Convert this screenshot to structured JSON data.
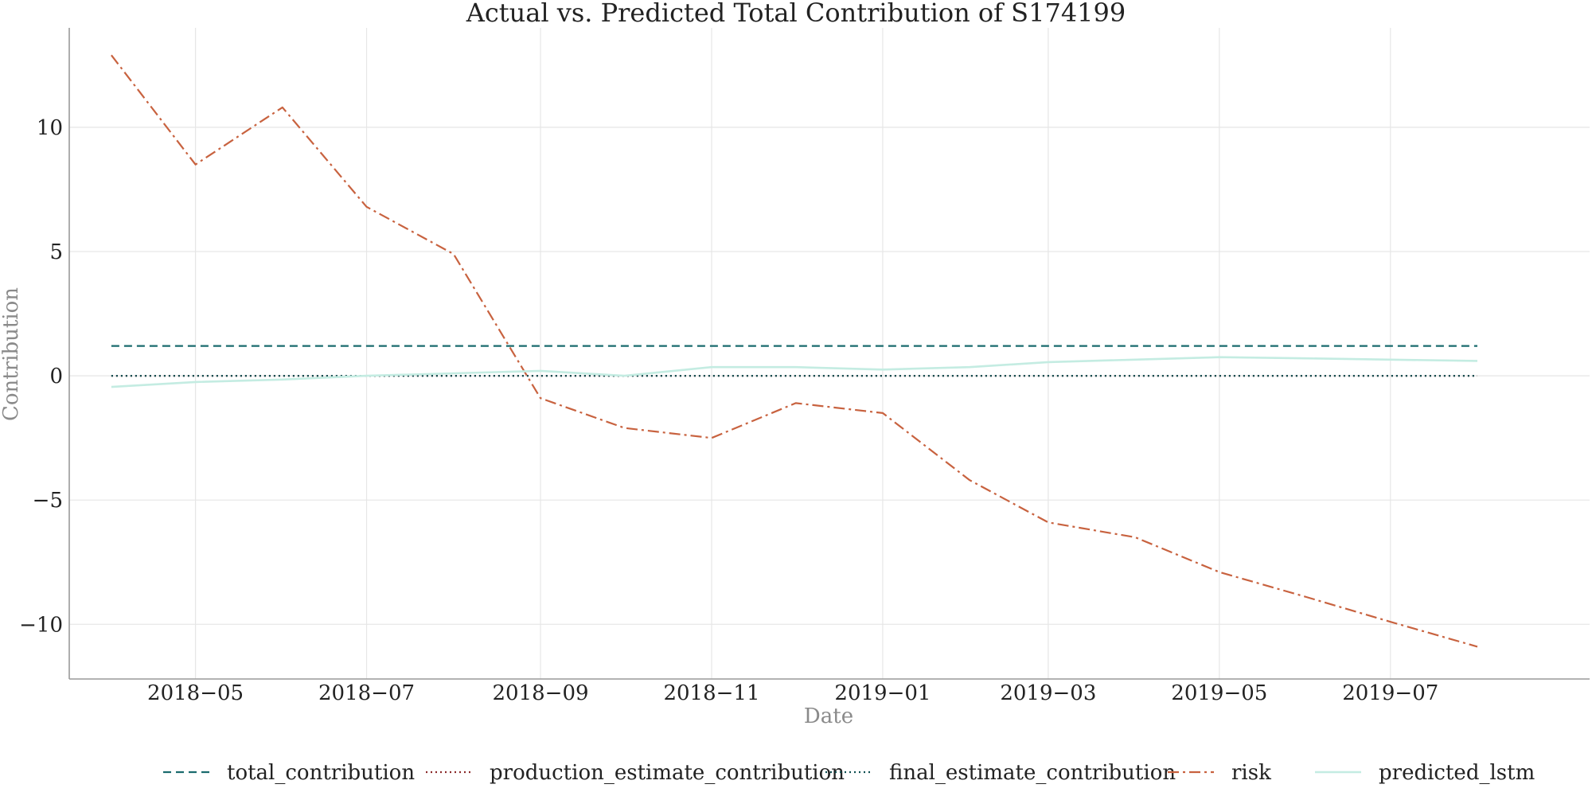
{
  "chart_data": {
    "type": "line",
    "title": "Actual vs. Predicted Total Contribution of S174199",
    "xlabel": "Date",
    "ylabel": "Contribution",
    "xlim": [
      "2018-03-17",
      "2019-09-10"
    ],
    "ylim": [
      -12.2,
      14.0
    ],
    "grid": true,
    "legend_position": "bottom-center",
    "x_ticks": [
      "2018-05-01",
      "2018-07-01",
      "2018-09-01",
      "2018-11-01",
      "2019-01-01",
      "2019-03-01",
      "2019-05-01",
      "2019-07-01"
    ],
    "x_tick_labels": [
      "2018−05",
      "2018−07",
      "2018−09",
      "2018−11",
      "2019−01",
      "2019−03",
      "2019−05",
      "2019−07"
    ],
    "y_ticks": [
      10,
      5,
      0,
      -5,
      -10
    ],
    "y_tick_labels": [
      "10",
      "5",
      "0",
      "−5",
      "−10"
    ],
    "x": [
      "2018-04-01",
      "2018-05-01",
      "2018-06-01",
      "2018-07-01",
      "2018-08-01",
      "2018-09-01",
      "2018-10-01",
      "2018-11-01",
      "2018-12-01",
      "2019-01-01",
      "2019-02-01",
      "2019-03-01",
      "2019-04-01",
      "2019-05-01",
      "2019-06-01",
      "2019-07-01",
      "2019-08-01"
    ],
    "series": [
      {
        "name": "total_contribution",
        "color": "#1a6b6e",
        "dash": "dashed",
        "values": [
          1.2,
          1.2,
          1.2,
          1.2,
          1.2,
          1.2,
          1.2,
          1.2,
          1.2,
          1.2,
          1.2,
          1.2,
          1.2,
          1.2,
          1.2,
          1.2,
          1.2
        ]
      },
      {
        "name": "production_estimate_contribution",
        "color": "#8b2a2a",
        "dash": "dotted",
        "values": [
          0,
          0,
          0,
          0,
          0,
          0,
          0,
          0,
          0,
          0,
          0,
          0,
          0,
          0,
          0,
          0,
          0
        ]
      },
      {
        "name": "final_estimate_contribution",
        "color": "#0f4f52",
        "dash": "dotted",
        "values": [
          0,
          0,
          0,
          0,
          0,
          0,
          0,
          0,
          0,
          0,
          0,
          0,
          0,
          0,
          0,
          0,
          0
        ]
      },
      {
        "name": "risk",
        "color": "#c8623f",
        "dash": "dashdot",
        "values": [
          12.9,
          8.5,
          10.8,
          6.8,
          4.9,
          -0.9,
          -2.1,
          -2.5,
          -1.1,
          -1.5,
          -4.2,
          -5.9,
          -6.5,
          -7.9,
          -8.9,
          -9.9,
          -10.9
        ]
      },
      {
        "name": "predicted_lstm",
        "color": "#c4ece2",
        "dash": "solid",
        "values": [
          -0.45,
          -0.25,
          -0.15,
          0.0,
          0.1,
          0.2,
          0.0,
          0.35,
          0.35,
          0.25,
          0.35,
          0.55,
          0.65,
          0.75,
          0.7,
          0.65,
          0.6
        ]
      }
    ]
  }
}
